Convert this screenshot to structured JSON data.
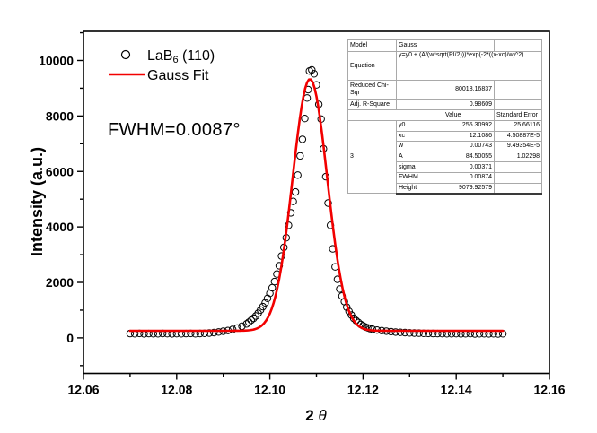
{
  "chart_data": {
    "type": "scatter",
    "title": "",
    "xlabel_prefix": "2",
    "xlabel_symbol": "θ",
    "ylabel": "Intensity (a.u.)",
    "xlim": [
      12.06,
      12.16
    ],
    "ylim": [
      -1280,
      11050
    ],
    "xticks": [
      12.06,
      12.08,
      12.1,
      12.12,
      12.14,
      12.16
    ],
    "xtick_labels": [
      "12.06",
      "12.08",
      "12.10",
      "12.12",
      "12.14",
      "12.16"
    ],
    "xminor": [
      12.07,
      12.09,
      12.11,
      12.13,
      12.15
    ],
    "yticks": [
      0,
      2000,
      4000,
      6000,
      8000,
      10000
    ],
    "ytick_labels": [
      "0",
      "2000",
      "4000",
      "6000",
      "8000",
      "10000"
    ],
    "yminor": [
      -1000,
      1000,
      3000,
      5000,
      7000,
      9000,
      11000
    ],
    "grid": false,
    "legend_position": "top-left-inside",
    "annotation": {
      "text": "FWHM=0.0087°"
    },
    "series": [
      {
        "name": "LaB6 (110)",
        "label_pre": "LaB",
        "label_sub": "6",
        "label_post": " (110)",
        "type": "scatter",
        "marker": "open-circle",
        "color": "#000000",
        "points": [
          [
            12.07,
            155
          ],
          [
            12.071,
            148
          ],
          [
            12.072,
            160
          ],
          [
            12.073,
            144
          ],
          [
            12.074,
            156
          ],
          [
            12.075,
            150
          ],
          [
            12.076,
            147
          ],
          [
            12.077,
            158
          ],
          [
            12.078,
            151
          ],
          [
            12.079,
            144
          ],
          [
            12.08,
            152
          ],
          [
            12.081,
            147
          ],
          [
            12.082,
            155
          ],
          [
            12.083,
            161
          ],
          [
            12.084,
            150
          ],
          [
            12.085,
            158
          ],
          [
            12.086,
            166
          ],
          [
            12.087,
            176
          ],
          [
            12.088,
            192
          ],
          [
            12.089,
            212
          ],
          [
            12.09,
            238
          ],
          [
            12.091,
            265
          ],
          [
            12.092,
            305
          ],
          [
            12.093,
            355
          ],
          [
            12.094,
            420
          ],
          [
            12.095,
            505
          ],
          [
            12.0955,
            565
          ],
          [
            12.096,
            635
          ],
          [
            12.0965,
            705
          ],
          [
            12.097,
            790
          ],
          [
            12.0975,
            890
          ],
          [
            12.098,
            1005
          ],
          [
            12.0985,
            1125
          ],
          [
            12.099,
            1265
          ],
          [
            12.0995,
            1425
          ],
          [
            12.1,
            1605
          ],
          [
            12.1005,
            1805
          ],
          [
            12.101,
            2030
          ],
          [
            12.1015,
            2300
          ],
          [
            12.102,
            2600
          ],
          [
            12.1025,
            2950
          ],
          [
            12.103,
            3260
          ],
          [
            12.1035,
            3610
          ],
          [
            12.104,
            4060
          ],
          [
            12.1045,
            4510
          ],
          [
            12.105,
            4920
          ],
          [
            12.1055,
            5260
          ],
          [
            12.106,
            5870
          ],
          [
            12.1065,
            6560
          ],
          [
            12.107,
            7160
          ],
          [
            12.1075,
            7910
          ],
          [
            12.108,
            8650
          ],
          [
            12.1082,
            8950
          ],
          [
            12.1085,
            9620
          ],
          [
            12.109,
            9660
          ],
          [
            12.1095,
            9520
          ],
          [
            12.11,
            9120
          ],
          [
            12.1105,
            8420
          ],
          [
            12.111,
            7890
          ],
          [
            12.1115,
            6820
          ],
          [
            12.112,
            5810
          ],
          [
            12.1125,
            4860
          ],
          [
            12.113,
            4060
          ],
          [
            12.1135,
            3210
          ],
          [
            12.114,
            2560
          ],
          [
            12.1145,
            2110
          ],
          [
            12.115,
            1760
          ],
          [
            12.1155,
            1510
          ],
          [
            12.116,
            1310
          ],
          [
            12.1165,
            1110
          ],
          [
            12.117,
            955
          ],
          [
            12.1175,
            825
          ],
          [
            12.118,
            705
          ],
          [
            12.1185,
            625
          ],
          [
            12.119,
            555
          ],
          [
            12.1195,
            485
          ],
          [
            12.12,
            435
          ],
          [
            12.1205,
            392
          ],
          [
            12.121,
            362
          ],
          [
            12.1215,
            332
          ],
          [
            12.122,
            312
          ],
          [
            12.123,
            282
          ],
          [
            12.124,
            262
          ],
          [
            12.125,
            242
          ],
          [
            12.126,
            226
          ],
          [
            12.127,
            211
          ],
          [
            12.128,
            201
          ],
          [
            12.129,
            191
          ],
          [
            12.13,
            181
          ],
          [
            12.131,
            176
          ],
          [
            12.132,
            171
          ],
          [
            12.133,
            166
          ],
          [
            12.134,
            161
          ],
          [
            12.135,
            158
          ],
          [
            12.136,
            154
          ],
          [
            12.137,
            152
          ],
          [
            12.138,
            149
          ],
          [
            12.139,
            147
          ],
          [
            12.14,
            151
          ],
          [
            12.141,
            144
          ],
          [
            12.142,
            148
          ],
          [
            12.143,
            151
          ],
          [
            12.144,
            143
          ],
          [
            12.145,
            147
          ],
          [
            12.146,
            150
          ],
          [
            12.147,
            144
          ],
          [
            12.148,
            147
          ],
          [
            12.149,
            143
          ],
          [
            12.15,
            149
          ]
        ]
      },
      {
        "name": "Gauss Fit",
        "label": "Gauss Fit",
        "type": "line",
        "color": "#f20000",
        "x_start": 12.07,
        "x_end": 12.15,
        "fit_params": {
          "y0": 255.30992,
          "xc": 12.1086,
          "w": 0.00743,
          "A": 84.50055
        }
      }
    ]
  },
  "stats_table": {
    "model_label": "Model",
    "model_value": "Gauss",
    "equation_label": "Equation",
    "equation_value": "y=y0 + (A/(w*sqrt(PI/2)))*exp(-2*((x-xc)/w)^2)",
    "chisqr_label": "Reduced Chi-Sqr",
    "chisqr_value": "80018.16837",
    "rsquare_label": "Adj. R-Square",
    "rsquare_value": "0.98609",
    "header_value": "Value",
    "header_stderr": "Standard Error",
    "group_label": "3",
    "params": [
      {
        "name": "y0",
        "value": "255.30992",
        "stderr": "25.66116"
      },
      {
        "name": "xc",
        "value": "12.1086",
        "stderr": "4.50887E-5"
      },
      {
        "name": "w",
        "value": "0.00743",
        "stderr": "9.49354E-5"
      },
      {
        "name": "A",
        "value": "84.50055",
        "stderr": "1.02298"
      },
      {
        "name": "sigma",
        "value": "0.00371",
        "stderr": ""
      },
      {
        "name": "FWHM",
        "value": "0.00874",
        "stderr": ""
      },
      {
        "name": "Height",
        "value": "9079.92579",
        "stderr": ""
      }
    ]
  }
}
